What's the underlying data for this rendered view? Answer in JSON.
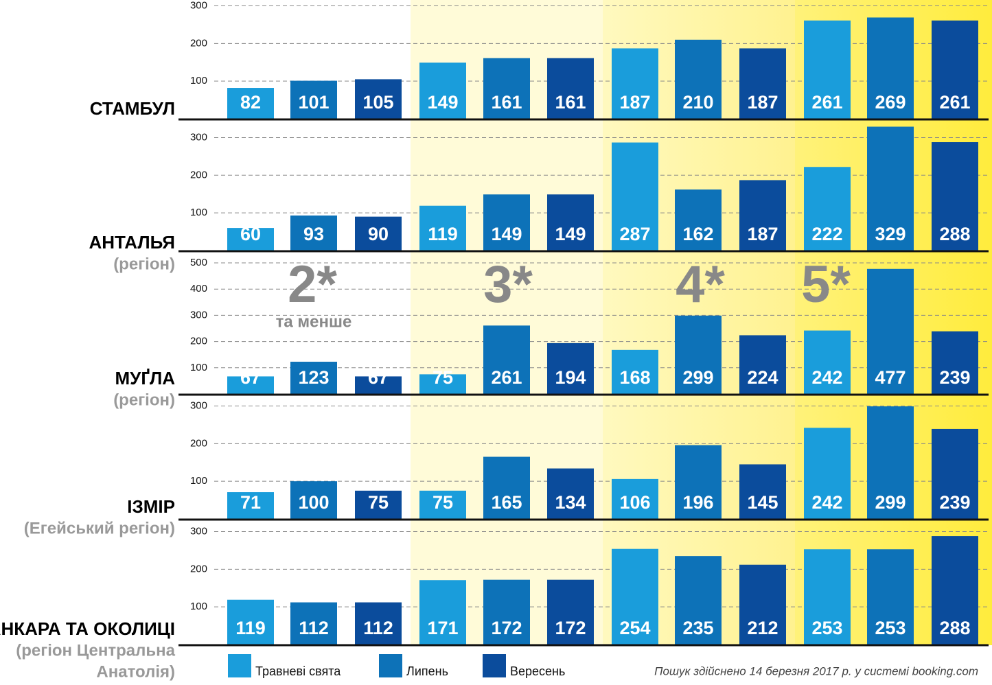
{
  "groups": {
    "labels": [
      "2*",
      "3*",
      "4*",
      "5*"
    ],
    "note": "та менше"
  },
  "footnote": "Пошук здійснено 14 березня 2017 р. у системі booking.com",
  "chart_data": [
    {
      "type": "bar",
      "title": "СТАМБУЛ",
      "ylim": [
        0,
        310
      ],
      "yticks": [
        100,
        200,
        300
      ],
      "series": [
        {
          "name": "Травневі свята",
          "color": "#1a9ddb",
          "values": [
            82,
            149,
            187,
            261
          ]
        },
        {
          "name": "Липень",
          "color": "#0d72b8",
          "values": [
            101,
            161,
            210,
            269
          ]
        },
        {
          "name": "Вересень",
          "color": "#0b4c9c",
          "values": [
            105,
            161,
            187,
            261
          ]
        }
      ]
    },
    {
      "type": "bar",
      "title": "АНТАЛЬЯ",
      "subtitle": [
        "(регіон)"
      ],
      "ylim": [
        0,
        330
      ],
      "yticks": [
        100,
        200,
        300
      ],
      "series": [
        {
          "name": "Травневі свята",
          "color": "#1a9ddb",
          "values": [
            60,
            119,
            287,
            222
          ]
        },
        {
          "name": "Липень",
          "color": "#0d72b8",
          "values": [
            93,
            149,
            162,
            329
          ]
        },
        {
          "name": "Вересень",
          "color": "#0b4c9c",
          "values": [
            90,
            149,
            187,
            288
          ]
        }
      ]
    },
    {
      "type": "bar",
      "title": "МУҐЛА",
      "subtitle": [
        "(регіон)"
      ],
      "ylim": [
        0,
        500
      ],
      "yticks": [
        100,
        200,
        300,
        400,
        500
      ],
      "series": [
        {
          "name": "Травневі свята",
          "color": "#1a9ddb",
          "values": [
            67,
            75,
            168,
            242
          ]
        },
        {
          "name": "Липень",
          "color": "#0d72b8",
          "values": [
            123,
            261,
            299,
            477
          ]
        },
        {
          "name": "Вересень",
          "color": "#0b4c9c",
          "values": [
            67,
            194,
            224,
            239
          ]
        }
      ]
    },
    {
      "type": "bar",
      "title": "ІЗМІР",
      "subtitle": [
        "(Егейський регіон)"
      ],
      "ylim": [
        0,
        310
      ],
      "yticks": [
        100,
        200,
        300
      ],
      "series": [
        {
          "name": "Травневі свята",
          "color": "#1a9ddb",
          "values": [
            71,
            75,
            106,
            242
          ]
        },
        {
          "name": "Липень",
          "color": "#0d72b8",
          "values": [
            100,
            165,
            196,
            299
          ]
        },
        {
          "name": "Вересень",
          "color": "#0b4c9c",
          "values": [
            75,
            134,
            145,
            239
          ]
        }
      ]
    },
    {
      "type": "bar",
      "title": "АНКАРА ТА ОКОЛИЦІ",
      "subtitle": [
        "(регіон Центральна",
        "Анатолія)"
      ],
      "ylim": [
        0,
        310
      ],
      "yticks": [
        100,
        200,
        300
      ],
      "series": [
        {
          "name": "Травневі свята",
          "color": "#1a9ddb",
          "values": [
            119,
            171,
            254,
            253
          ]
        },
        {
          "name": "Липень",
          "color": "#0d72b8",
          "values": [
            112,
            172,
            235,
            253
          ]
        },
        {
          "name": "Вересень",
          "color": "#0b4c9c",
          "values": [
            112,
            172,
            212,
            288
          ]
        }
      ]
    }
  ]
}
